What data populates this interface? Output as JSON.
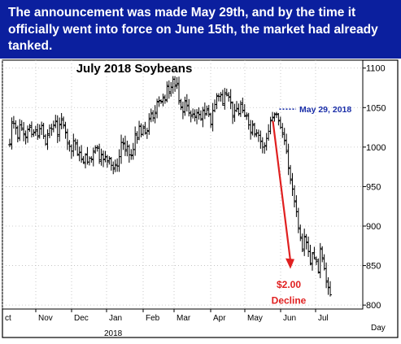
{
  "banner": {
    "text": "The announcement was made May 29th, and by the time it officially went into force on June 15th, the market had already tanked."
  },
  "colors": {
    "banner_bg": "#0b1f9e",
    "banner_text": "#ffffff",
    "price_bars": "#000000",
    "decline_arrow": "#e02020",
    "decline_text": "#e02020",
    "may29_marker": "#1a2ea8",
    "grid": "#bdbdbd"
  },
  "chart_data": {
    "type": "ohlc",
    "title": "July 2018 Soybeans",
    "x_axis_label": "Day",
    "x_tick_labels": [
      "ct",
      "Nov",
      "Dec",
      "Jan",
      "Feb",
      "Mar",
      "Apr",
      "May",
      "Jun",
      "Jul"
    ],
    "x_year_label": "2018",
    "y_tick_labels": [
      "800",
      "850",
      "900",
      "950",
      "1000",
      "1050",
      "1100"
    ],
    "ylim": [
      795,
      1110
    ],
    "grid": "dotted, vertical and horizontal",
    "closes": [
      1004,
      1032,
      1030,
      1024,
      1012,
      1028,
      1024,
      1017,
      1013,
      1022,
      1025,
      1016,
      1018,
      1022,
      1013,
      1023,
      1027,
      1014,
      1004,
      1015,
      1024,
      1023,
      1028,
      1033,
      1014,
      1028,
      1036,
      1028,
      1018,
      1006,
      1001,
      995,
      1008,
      1004,
      991,
      993,
      984,
      981,
      990,
      981,
      986,
      985,
      995,
      999,
      1000,
      984,
      990,
      984,
      988,
      983,
      986,
      977,
      972,
      978,
      976,
      988,
      1006,
      1004,
      995,
      1001,
      990,
      989,
      997,
      1017,
      1010,
      1026,
      1016,
      1024,
      1018,
      1021,
      1035,
      1042,
      1037,
      1044,
      1058,
      1059,
      1057,
      1062,
      1060,
      1078,
      1070,
      1076,
      1086,
      1077,
      1079,
      1059,
      1050,
      1045,
      1059,
      1052,
      1043,
      1039,
      1042,
      1039,
      1043,
      1041,
      1036,
      1046,
      1041,
      1047,
      1042,
      1029,
      1046,
      1054,
      1065,
      1064,
      1066,
      1055,
      1069,
      1067,
      1063,
      1057,
      1038,
      1046,
      1049,
      1042,
      1054,
      1046,
      1040,
      1041,
      1028,
      1019,
      1029,
      1017,
      1018,
      1015,
      1007,
      1000,
      1002,
      1011,
      1020,
      1033,
      1037,
      1041,
      1042,
      1033,
      1025,
      1018,
      1008,
      994,
      974,
      958,
      947,
      932,
      918,
      898,
      886,
      871,
      887,
      880,
      868,
      853,
      865,
      860,
      855,
      842,
      872,
      860,
      846,
      829,
      822,
      813
    ],
    "start_close": 1003,
    "annotations": [
      {
        "text": "May 29, 2018",
        "close": 1048
      },
      {
        "text": "$2.00",
        "close": 826
      },
      {
        "text": "Decline",
        "close": 806
      }
    ]
  }
}
